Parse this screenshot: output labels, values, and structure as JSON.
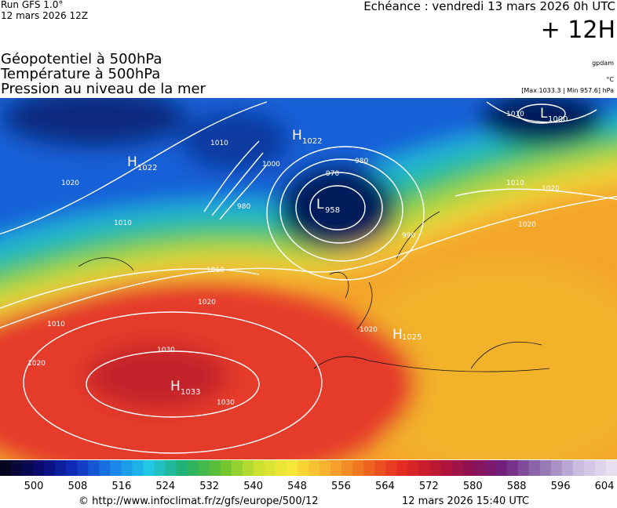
{
  "header": {
    "run": "Run GFS 1.0°",
    "date": "12 mars 2026 12Z",
    "echeance": "Echéance : vendredi 13 mars 2026 0h UTC",
    "lead": "+ 12H",
    "fields": [
      "Géopotentiel à 500hPa",
      "Température à 500hPa",
      "Pression au niveau de la mer"
    ],
    "units": [
      "gpdam",
      "°C",
      "[Max 1033.3 | Min 957.6] hPa"
    ]
  },
  "centers": [
    {
      "type": "H",
      "value": "1022"
    },
    {
      "type": "H",
      "value": "1022"
    },
    {
      "type": "L",
      "value": "958"
    },
    {
      "type": "L",
      "value": "1000"
    },
    {
      "type": "H",
      "value": "1033"
    },
    {
      "type": "H",
      "value": "1025"
    }
  ],
  "isobar_labels": [
    "1010",
    "1020",
    "1010",
    "1010",
    "1020",
    "1010",
    "1020",
    "1030",
    "1030",
    "970",
    "980",
    "980",
    "990",
    "1000",
    "1010",
    "1020",
    "1020",
    "1020",
    "1010"
  ],
  "colorbar": {
    "ticks": [
      500,
      508,
      516,
      524,
      532,
      540,
      548,
      556,
      564,
      572,
      580,
      588,
      596,
      604
    ]
  },
  "footer": {
    "url": "© http://www.infoclimat.fr/z/gfs/europe/500/12",
    "timestamp": "12 mars 2026 15:40 UTC"
  }
}
